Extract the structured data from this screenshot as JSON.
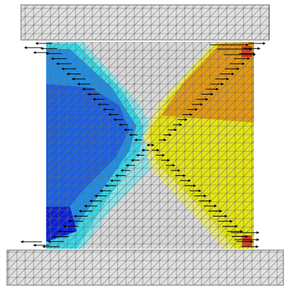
{
  "colors": {
    "plate_fill": "#e0e0e0",
    "plate_stroke": "#6e6e6e",
    "mesh_line": "#6b6b6b",
    "neutral_fill": "#d9d9d9",
    "blue_dark": "#0a1fd6",
    "blue_main": "#1a5fe0",
    "blue_mid": "#1e8fe6",
    "cyan": "#38d6e6",
    "cyan_light": "#8be3e8",
    "yellow_main": "#e4e415",
    "yellow_light": "#e8e67a",
    "orange": "#e39a12",
    "red": "#d83a1a",
    "arrow": "#000000"
  },
  "components": [
    "top-loading-plate",
    "specimen-mesh",
    "bottom-loading-plate",
    "displacement-vectors"
  ]
}
